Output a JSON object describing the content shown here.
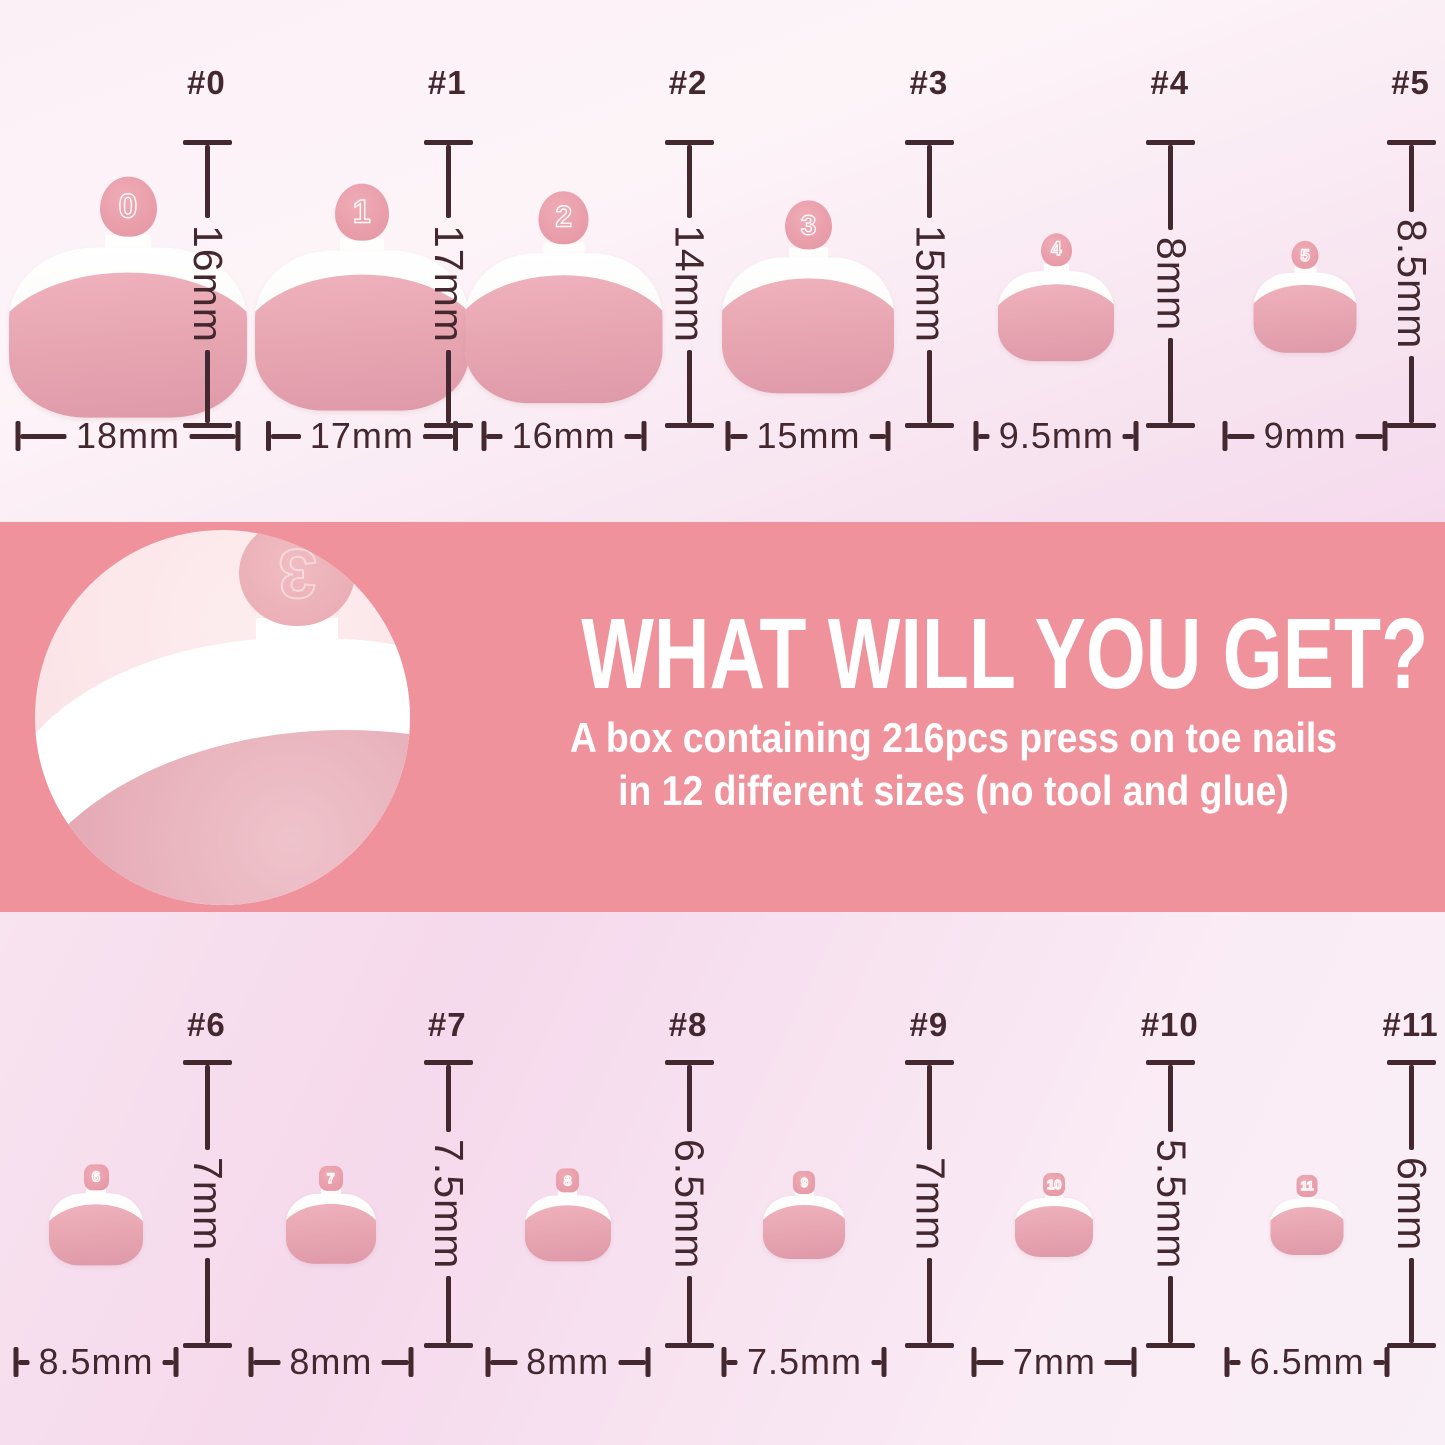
{
  "top": {
    "sizes": [
      {
        "id": "#0",
        "tab": "0",
        "height_label": "16mm",
        "width_label": "18mm"
      },
      {
        "id": "#1",
        "tab": "1",
        "height_label": "17mm",
        "width_label": "17mm"
      },
      {
        "id": "#2",
        "tab": "2",
        "height_label": "14mm",
        "width_label": "16mm"
      },
      {
        "id": "#3",
        "tab": "3",
        "height_label": "15mm",
        "width_label": "15mm"
      },
      {
        "id": "#4",
        "tab": "4",
        "height_label": "8mm",
        "width_label": "9.5mm"
      },
      {
        "id": "#5",
        "tab": "5",
        "height_label": "8.5mm",
        "width_label": "9mm"
      }
    ]
  },
  "banner": {
    "heading": "WHAT WILL YOU GET?",
    "subline1": "A box containing 216pcs press on toe nails",
    "subline2": "in 12 different sizes (no tool and glue)",
    "circle_tab": "3"
  },
  "bottom": {
    "sizes": [
      {
        "id": "#6",
        "tab": "6",
        "height_label": "7mm",
        "width_label": "8.5mm"
      },
      {
        "id": "#7",
        "tab": "7",
        "height_label": "7.5mm",
        "width_label": "8mm"
      },
      {
        "id": "#8",
        "tab": "8",
        "height_label": "6.5mm",
        "width_label": "8mm"
      },
      {
        "id": "#9",
        "tab": "9",
        "height_label": "7mm",
        "width_label": "7.5mm"
      },
      {
        "id": "#10",
        "tab": "10",
        "height_label": "5.5mm",
        "width_label": "7mm"
      },
      {
        "id": "#11",
        "tab": "11",
        "height_label": "6mm",
        "width_label": "6.5mm"
      }
    ]
  },
  "colors": {
    "banner_background": "#f0929b",
    "ink": "#43282f",
    "nail_pink": "#e2a1ae",
    "nail_tip_white": "#ffffff",
    "tab_pink": "#e99fa9",
    "section_background": "#f8e6f1"
  }
}
